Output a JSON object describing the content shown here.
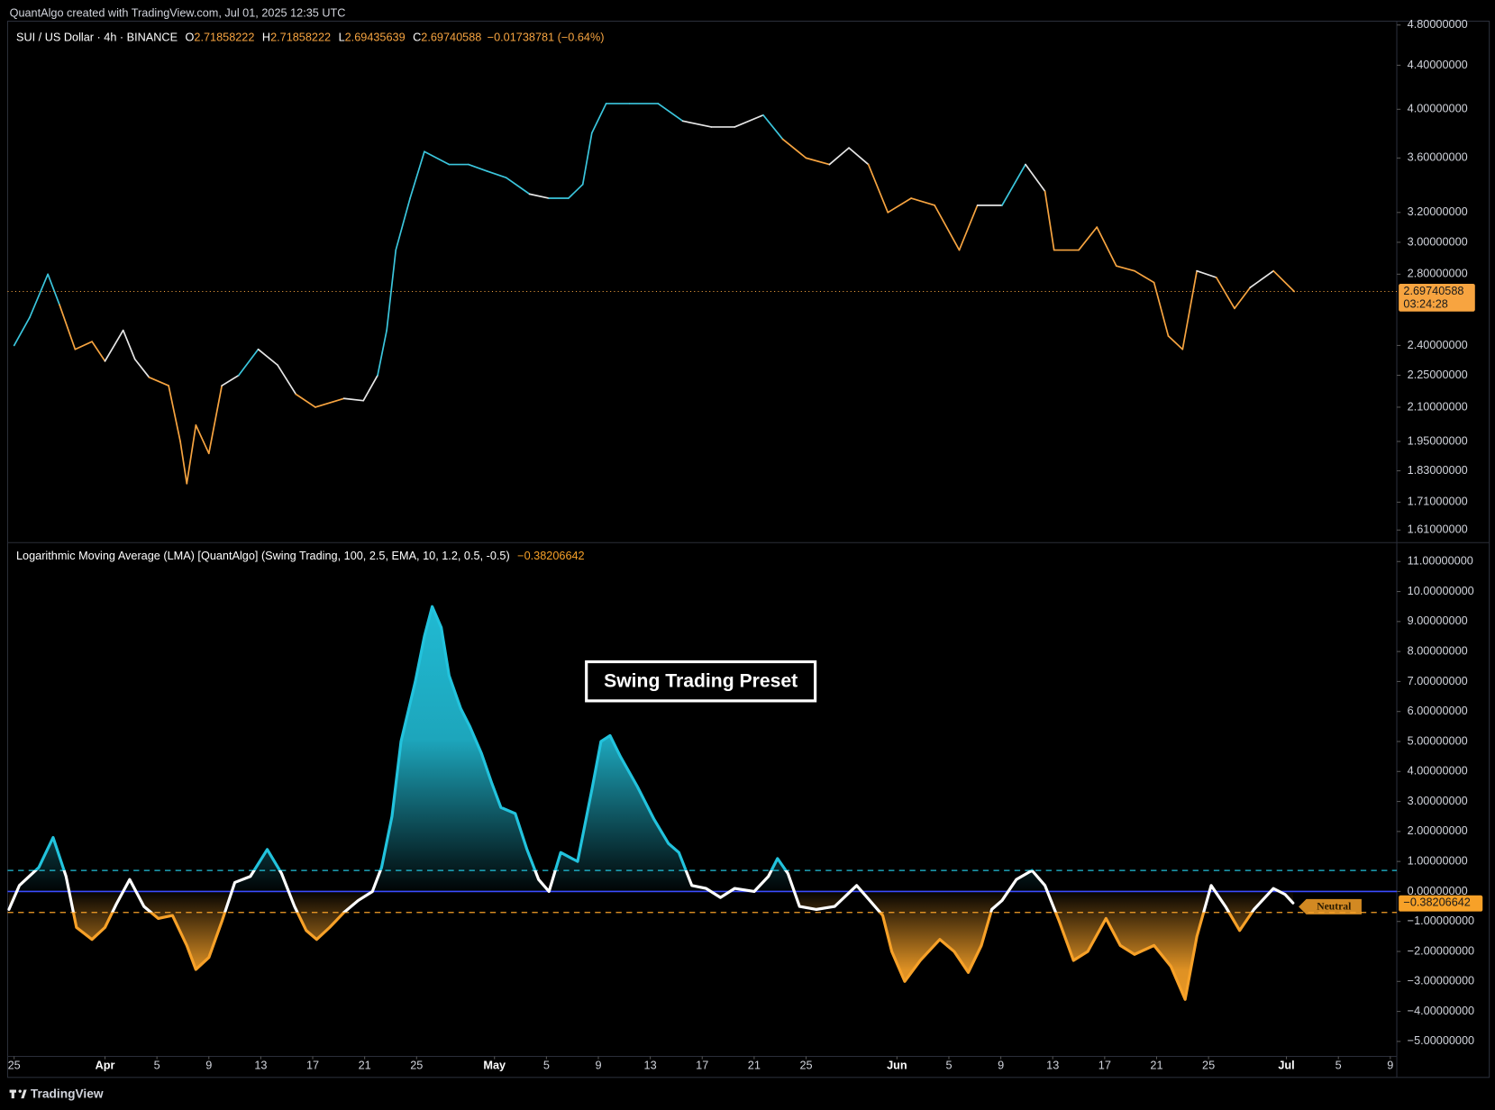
{
  "header": "QuantAlgo created with TradingView.com, Jul 01, 2025 12:35 UTC",
  "footer": "TradingView",
  "chart_data": [
    {
      "type": "line",
      "symbol": "SUI / US Dollar · 4h · BINANCE",
      "ohlc": [
        {
          "label": "O",
          "value": "2.71858222"
        },
        {
          "label": "H",
          "value": "2.71858222"
        },
        {
          "label": "L",
          "value": "2.69435639"
        },
        {
          "label": "C",
          "value": "2.69740588"
        }
      ],
      "change": "−0.01738781 (−0.64%)",
      "last_label": "2.69740588",
      "countdown": "03:24:28",
      "log_scale": true,
      "grid": false,
      "x": [
        0,
        1.2,
        2.6,
        3.5,
        4.7,
        6,
        7,
        8.4,
        9.3,
        10.4,
        11.9,
        12.8,
        13.3,
        14,
        15,
        16,
        17.3,
        18.8,
        20.3,
        21.7,
        23.2,
        25.4,
        26.9,
        28,
        28.7,
        29.4,
        30.5,
        31.6,
        33.5,
        35,
        36.4,
        37.9,
        39.7,
        41.2,
        42.7,
        43.8,
        44.5,
        45.6,
        47.4,
        49.6,
        51.5,
        53.7,
        55.5,
        57.7,
        59.2,
        61,
        62.8,
        64.3,
        65.8,
        67.3,
        69.1,
        70.9,
        72.8,
        74.2,
        76.1,
        77.9,
        79.4,
        80.1,
        82,
        83.4,
        84.9,
        86.3,
        87.8,
        88.9,
        90,
        91.1,
        92.6,
        94,
        95.2,
        97,
        98.6
      ],
      "values": [
        2.4,
        2.55,
        2.8,
        2.62,
        2.38,
        2.42,
        2.32,
        2.48,
        2.33,
        2.24,
        2.2,
        1.95,
        1.78,
        2.02,
        1.9,
        2.2,
        2.25,
        2.38,
        2.3,
        2.16,
        2.1,
        2.14,
        2.13,
        2.25,
        2.48,
        2.95,
        3.3,
        3.65,
        3.55,
        3.55,
        3.5,
        3.45,
        3.33,
        3.3,
        3.3,
        3.4,
        3.8,
        4.05,
        4.05,
        4.05,
        3.9,
        3.85,
        3.85,
        3.95,
        3.75,
        3.6,
        3.55,
        3.68,
        3.55,
        3.2,
        3.3,
        3.25,
        2.95,
        3.25,
        3.25,
        3.55,
        3.35,
        2.95,
        2.95,
        3.1,
        2.85,
        2.82,
        2.75,
        2.45,
        2.38,
        2.82,
        2.78,
        2.6,
        2.72,
        2.82,
        2.69740588
      ],
      "colors": [
        "#e6e6e6",
        "#3bc6dd",
        "#3bc6dd",
        "#3bc6dd",
        "#f7a440",
        "#f7a440",
        "#f7a440",
        "#e6e6e6",
        "#e6e6e6",
        "#e6e6e6",
        "#f7a440",
        "#f7a440",
        "#f7a440",
        "#f7a440",
        "#f7a440",
        "#f7a440",
        "#e6e6e6",
        "#3bc6dd",
        "#e6e6e6",
        "#e6e6e6",
        "#f7a440",
        "#f7a440",
        "#e6e6e6",
        "#e6e6e6",
        "#3bc6dd",
        "#3bc6dd",
        "#3bc6dd",
        "#3bc6dd",
        "#3bc6dd",
        "#3bc6dd",
        "#3bc6dd",
        "#3bc6dd",
        "#3bc6dd",
        "#e6e6e6",
        "#3bc6dd",
        "#3bc6dd",
        "#3bc6dd",
        "#3bc6dd",
        "#3bc6dd",
        "#3bc6dd",
        "#3bc6dd",
        "#e6e6e6",
        "#e6e6e6",
        "#e6e6e6",
        "#3bc6dd",
        "#f7a440",
        "#f7a440",
        "#e6e6e6",
        "#e6e6e6",
        "#f7a440",
        "#f7a440",
        "#f7a440",
        "#f7a440",
        "#f7a440",
        "#e6e6e6",
        "#3bc6dd",
        "#e6e6e6",
        "#f7a440",
        "#f7a440",
        "#f7a440",
        "#f7a440",
        "#f7a440",
        "#f7a440",
        "#f7a440",
        "#f7a440",
        "#f7a440",
        "#e6e6e6",
        "#f7a440",
        "#f7a440",
        "#e6e6e6",
        "#f7a440"
      ],
      "last_color": "#f7a440",
      "ylim": [
        1.57,
        4.84
      ],
      "yticks": [
        {
          "value": 4.8,
          "label": "4.80000000"
        },
        {
          "value": 4.4,
          "label": "4.40000000"
        },
        {
          "value": 4.0,
          "label": "4.00000000"
        },
        {
          "value": 3.6,
          "label": "3.60000000"
        },
        {
          "value": 3.2,
          "label": "3.20000000"
        },
        {
          "value": 3.0,
          "label": "3.00000000"
        },
        {
          "value": 2.8,
          "label": "2.80000000"
        },
        {
          "value": 2.4,
          "label": "2.40000000"
        },
        {
          "value": 2.25,
          "label": "2.25000000"
        },
        {
          "value": 2.1,
          "label": "2.10000000"
        },
        {
          "value": 1.95,
          "label": "1.95000000"
        },
        {
          "value": 1.83,
          "label": "1.83000000"
        },
        {
          "value": 1.71,
          "label": "1.71000000"
        },
        {
          "value": 1.61,
          "label": "1.61000000"
        }
      ]
    },
    {
      "type": "area",
      "title": "Logarithmic Moving Average (LMA) [QuantAlgo] (Swing Trading, 100, 2.5, EMA, 10, 1.2, 0.5, -0.5)",
      "current_label": "−0.38206642",
      "state_label": "Neutral",
      "annotation": "Swing Trading Preset",
      "bull_color": "#22c3dd",
      "bear_color": "#f7a128",
      "neutral_color": "#ffffff",
      "zero_line": 0,
      "zero_line_color": "#3b4cff",
      "upper_threshold": 0.7,
      "lower_threshold": -0.7,
      "xlim": [
        -0.5,
        106.5
      ],
      "xticks": [
        {
          "value": 0,
          "label": "25"
        },
        {
          "value": 7,
          "label": "Apr"
        },
        {
          "value": 11,
          "label": "5"
        },
        {
          "value": 15,
          "label": "9"
        },
        {
          "value": 19,
          "label": "13"
        },
        {
          "value": 23,
          "label": "17"
        },
        {
          "value": 27,
          "label": "21"
        },
        {
          "value": 31,
          "label": "25"
        },
        {
          "value": 37,
          "label": "May"
        },
        {
          "value": 41,
          "label": "5"
        },
        {
          "value": 45,
          "label": "9"
        },
        {
          "value": 49,
          "label": "13"
        },
        {
          "value": 53,
          "label": "17"
        },
        {
          "value": 57,
          "label": "21"
        },
        {
          "value": 61,
          "label": "25"
        },
        {
          "value": 68,
          "label": "Jun"
        },
        {
          "value": 72,
          "label": "5"
        },
        {
          "value": 76,
          "label": "9"
        },
        {
          "value": 80,
          "label": "13"
        },
        {
          "value": 84,
          "label": "17"
        },
        {
          "value": 88,
          "label": "21"
        },
        {
          "value": 92,
          "label": "25"
        },
        {
          "value": 98,
          "label": "Jul"
        },
        {
          "value": 102,
          "label": "5"
        },
        {
          "value": 106,
          "label": "9"
        }
      ],
      "x": [
        -0.4,
        0.4,
        1.9,
        3,
        4,
        4.8,
        6,
        7,
        7.9,
        8.9,
        10,
        11.1,
        12.2,
        13.3,
        14,
        15,
        16,
        17,
        18.2,
        19.5,
        20.6,
        21.6,
        22.5,
        23.3,
        24.3,
        25.4,
        26.5,
        27.6,
        28.3,
        29.1,
        29.8,
        30.9,
        31.6,
        32.2,
        32.9,
        33.5,
        34.4,
        35.1,
        36,
        36.8,
        37.5,
        38.6,
        39.5,
        40.4,
        41.2,
        42.1,
        43.4,
        44.5,
        45.2,
        45.9,
        46.7,
        48,
        49.3,
        50.4,
        51.2,
        52.2,
        53.3,
        54.4,
        55.5,
        57,
        58.1,
        58.8,
        59.6,
        60.5,
        61.8,
        63.2,
        64.9,
        65.9,
        66.9,
        67.6,
        68.6,
        69.8,
        71.3,
        72.4,
        73.5,
        74.5,
        75.3,
        76.1,
        77.2,
        78.4,
        79.4,
        80.5,
        81.6,
        82.7,
        84.1,
        85.2,
        86.3,
        87.8,
        89.1,
        90.2,
        91.1,
        92.2,
        93.3,
        94.4,
        95.5,
        97,
        97.9,
        98.5
      ],
      "values": [
        -0.6,
        0.2,
        0.8,
        1.8,
        0.5,
        -1.2,
        -1.6,
        -1.2,
        -0.4,
        0.4,
        -0.5,
        -0.9,
        -0.8,
        -1.8,
        -2.6,
        -2.2,
        -1.0,
        0.3,
        0.5,
        1.4,
        0.6,
        -0.5,
        -1.3,
        -1.6,
        -1.2,
        -0.7,
        -0.3,
        0.0,
        0.8,
        2.5,
        5.0,
        7.0,
        8.5,
        9.5,
        8.8,
        7.2,
        6.1,
        5.5,
        4.6,
        3.6,
        2.8,
        2.6,
        1.4,
        0.4,
        0.0,
        1.3,
        1.0,
        3.4,
        5.0,
        5.2,
        4.5,
        3.5,
        2.4,
        1.6,
        1.3,
        0.2,
        0.1,
        -0.2,
        0.1,
        0.0,
        0.5,
        1.1,
        0.6,
        -0.5,
        -0.6,
        -0.5,
        0.2,
        -0.3,
        -0.8,
        -2.0,
        -3.0,
        -2.3,
        -1.6,
        -2.0,
        -2.7,
        -1.8,
        -0.6,
        -0.3,
        0.4,
        0.7,
        0.2,
        -1.0,
        -2.3,
        -2.0,
        -0.9,
        -1.8,
        -2.1,
        -1.8,
        -2.5,
        -3.6,
        -1.5,
        0.2,
        -0.5,
        -1.3,
        -0.6,
        0.1,
        -0.1,
        -0.38206642
      ],
      "ylim": [
        -5.5,
        11.6
      ],
      "yticks": [
        {
          "value": 11,
          "label": "11.00000000"
        },
        {
          "value": 10,
          "label": "10.00000000"
        },
        {
          "value": 9,
          "label": "9.00000000"
        },
        {
          "value": 8,
          "label": "8.00000000"
        },
        {
          "value": 7,
          "label": "7.00000000"
        },
        {
          "value": 6,
          "label": "6.00000000"
        },
        {
          "value": 5,
          "label": "5.00000000"
        },
        {
          "value": 4,
          "label": "4.00000000"
        },
        {
          "value": 3,
          "label": "3.00000000"
        },
        {
          "value": 2,
          "label": "2.00000000"
        },
        {
          "value": 1,
          "label": "1.00000000"
        },
        {
          "value": 0,
          "label": "0.00000000"
        },
        {
          "value": -1,
          "label": "−1.00000000"
        },
        {
          "value": -2,
          "label": "−2.00000000"
        },
        {
          "value": -3,
          "label": "−3.00000000"
        },
        {
          "value": -4,
          "label": "−4.00000000"
        },
        {
          "value": -5,
          "label": "−5.00000000"
        }
      ]
    }
  ]
}
